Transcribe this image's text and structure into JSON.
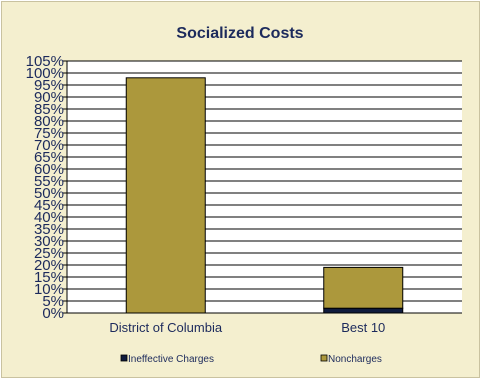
{
  "chart_data": {
    "type": "bar",
    "stacked": true,
    "title": "Socialized Costs",
    "xlabel": "",
    "ylabel": "",
    "categories": [
      "District of Columbia",
      "Best 10"
    ],
    "series": [
      {
        "name": "Ineffective Charges",
        "values": [
          0,
          2
        ],
        "color": "#0f1b3d"
      },
      {
        "name": "Noncharges",
        "values": [
          98,
          17
        ],
        "color": "#ac983c"
      }
    ],
    "ylim": [
      0,
      105
    ],
    "ytick_step": 5,
    "ytick_format": "{v}%",
    "grid": true,
    "legend": "bottom"
  },
  "colors": {
    "background": "#f4efcf",
    "plot_background": "#ffffff",
    "text": "#1c2a5c",
    "gridline": "#000000"
  }
}
